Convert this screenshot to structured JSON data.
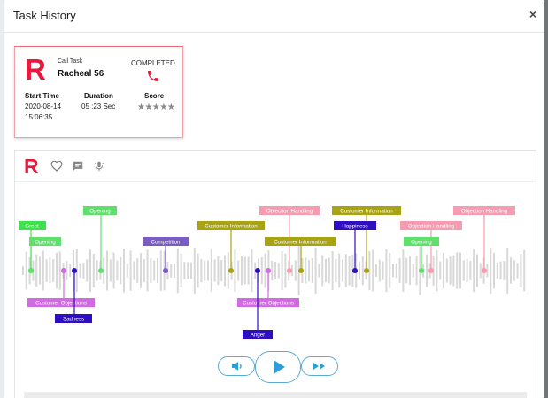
{
  "modal": {
    "title": "Task History",
    "close_label": "×"
  },
  "call_card": {
    "logo": "R",
    "task_type": "Call Task",
    "agent_name": "Racheal 56",
    "status": "COMPLETED",
    "start_time_label": "Start Time",
    "start_date": "2020-08-14",
    "start_clock": "15:06:35",
    "duration_label": "Duration",
    "duration": "05 :23 Sec",
    "score_label": "Score",
    "stars": "★★★★★",
    "score_stars": 0,
    "phone_color": "#e8193c"
  },
  "panel": {
    "logo": "R",
    "icons": [
      "heart-icon",
      "comment-icon",
      "microphone-icon"
    ]
  },
  "colors": {
    "greeting": "#3be24d",
    "opening": "#5ee06a",
    "competition": "#7b5cc2",
    "customer_information": "#a7a312",
    "objection_handling": "#f79bb0",
    "customer_objections": "#d26ae4",
    "sadness": "#2f0ec2",
    "anger": "#2f0ec2",
    "happiness": "#2f0ec2",
    "waveform": "#d8d8d8",
    "accent_blue": "#2c9fd9",
    "brand_red": "#e8193c"
  },
  "tags": [
    {
      "label": "Greet",
      "type": "greeting"
    },
    {
      "label": "Opening",
      "type": "opening"
    },
    {
      "label": "Opening",
      "type": "opening"
    },
    {
      "label": "Competition",
      "type": "competition"
    },
    {
      "label": "Customer Information",
      "type": "customer_information"
    },
    {
      "label": "Objection Handling",
      "type": "objection_handling"
    },
    {
      "label": "Customer Information",
      "type": "customer_information"
    },
    {
      "label": "Customer Information",
      "type": "customer_information"
    },
    {
      "label": "Happiness",
      "type": "happiness"
    },
    {
      "label": "Objection Handling",
      "type": "objection_handling"
    },
    {
      "label": "Objection Handling",
      "type": "objection_handling"
    },
    {
      "label": "Opening",
      "type": "opening"
    },
    {
      "label": "Customer Objections",
      "type": "customer_objections"
    },
    {
      "label": "Sadness",
      "type": "sadness"
    },
    {
      "label": "Customer Objections",
      "type": "customer_objections"
    },
    {
      "label": "Anger",
      "type": "anger"
    }
  ],
  "player": {
    "rewind_icon": "volume-icon",
    "play_icon": "play-icon",
    "forward_icon": "fast-forward-icon"
  }
}
